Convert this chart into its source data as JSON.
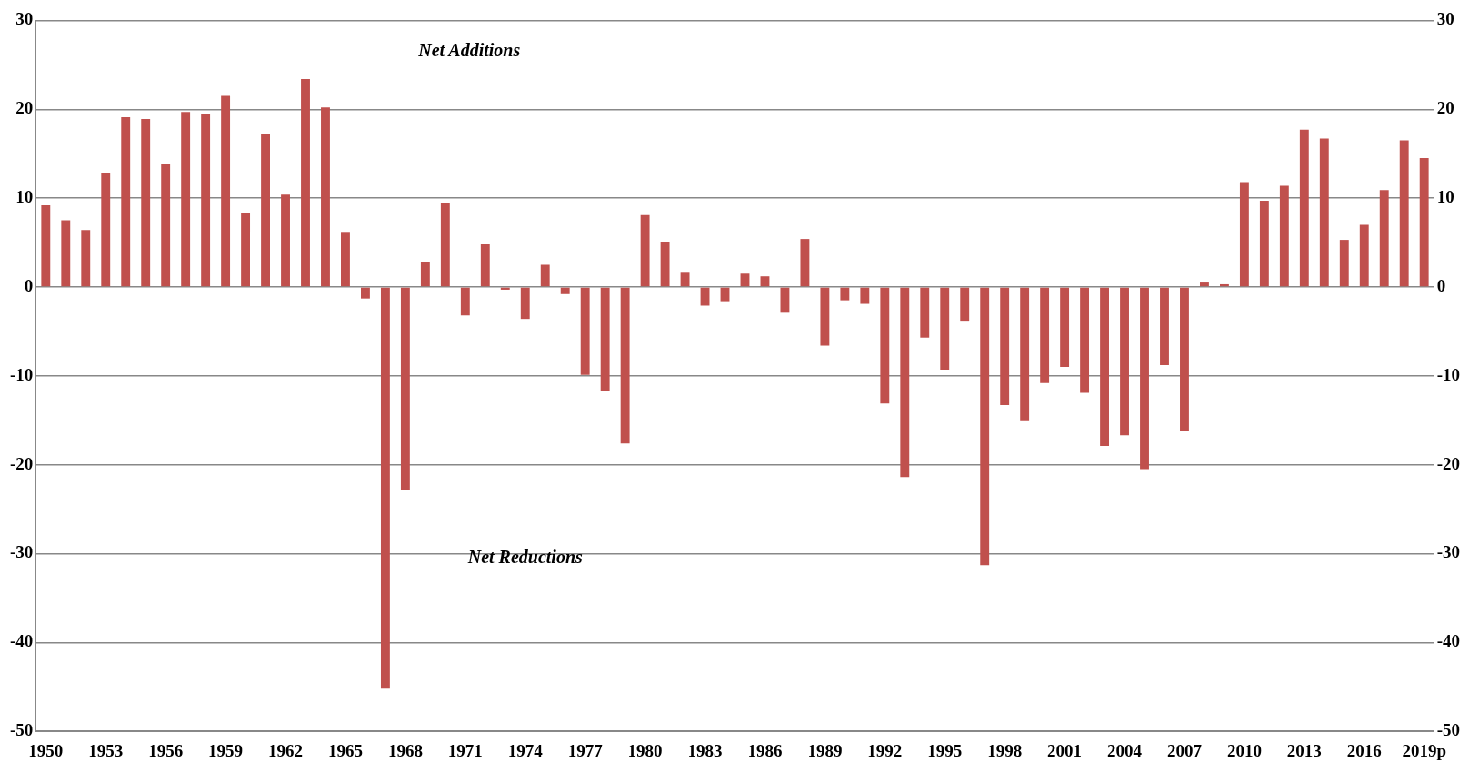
{
  "chart_data": {
    "type": "bar",
    "categories": [
      "1950",
      null,
      null,
      "1953",
      null,
      null,
      "1956",
      null,
      null,
      "1959",
      null,
      null,
      "1962",
      null,
      null,
      "1965",
      null,
      null,
      "1968",
      null,
      null,
      "1971",
      null,
      null,
      "1974",
      null,
      null,
      "1977",
      null,
      null,
      "1980",
      null,
      null,
      "1983",
      null,
      null,
      "1986",
      null,
      null,
      "1989",
      null,
      null,
      "1992",
      null,
      null,
      "1995",
      null,
      null,
      "1998",
      null,
      null,
      "2001",
      null,
      null,
      "2004",
      null,
      null,
      "2007",
      null,
      null,
      "2010",
      null,
      null,
      "2013",
      null,
      null,
      "2016",
      null,
      null,
      "2019p"
    ],
    "values": [
      9.2,
      7.5,
      6.4,
      12.8,
      19.1,
      18.9,
      13.8,
      19.7,
      19.4,
      21.5,
      8.3,
      17.2,
      10.4,
      23.4,
      20.2,
      6.2,
      -1.3,
      -45.2,
      -22.8,
      2.8,
      9.4,
      -3.2,
      4.8,
      -0.1,
      -3.6,
      2.5,
      -0.8,
      -9.9,
      -11.7,
      -17.6,
      8.1,
      5.1,
      1.6,
      -2.1,
      -1.6,
      1.5,
      1.2,
      -2.9,
      5.4,
      -6.6,
      -1.5,
      -1.9,
      -13.1,
      -21.4,
      -5.7,
      -9.3,
      -3.8,
      -31.3,
      -13.3,
      -15.0,
      -10.8,
      -9.0,
      -11.9,
      -17.9,
      -16.7,
      -20.5,
      -8.8,
      -16.2,
      0.5,
      0.1,
      11.8,
      9.7,
      11.4,
      17.7,
      16.7,
      5.3,
      7.0,
      10.9,
      16.5,
      14.5
    ],
    "color": "#c0504d",
    "ylim": [
      -50,
      30
    ],
    "yticks": [
      -50,
      -40,
      -30,
      -20,
      -10,
      0,
      10,
      20,
      30
    ],
    "y2lim": [
      -50,
      30
    ],
    "y2ticks": [
      -50,
      -40,
      -30,
      -20,
      -10,
      0,
      10,
      20,
      30
    ],
    "grid": "y",
    "annotations": [
      "Net Additions",
      "Net Reductions"
    ]
  }
}
